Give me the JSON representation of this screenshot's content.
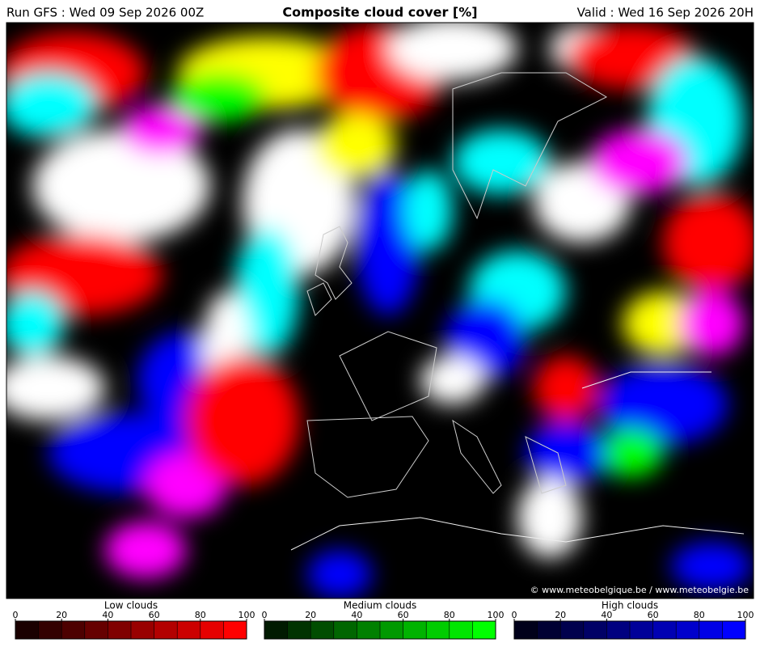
{
  "header": {
    "run": "Run GFS : Wed 09 Sep 2026 00Z",
    "title": "Composite cloud cover [%]",
    "valid": "Valid : Wed 16 Sep 2026 20H"
  },
  "map": {
    "credit": "© www.meteobelgique.be / www.meteobelgie.be"
  },
  "colorbars": [
    {
      "label": "Low clouds",
      "lim": [
        0,
        100
      ],
      "ticks": [
        0,
        20,
        40,
        60,
        80,
        100
      ],
      "colors": [
        "#1a0000",
        "#330000",
        "#4d0000",
        "#660000",
        "#800000",
        "#990000",
        "#b30000",
        "#cc0000",
        "#e60000",
        "#ff0000"
      ]
    },
    {
      "label": "Medium clouds",
      "lim": [
        0,
        100
      ],
      "ticks": [
        0,
        20,
        40,
        60,
        80,
        100
      ],
      "colors": [
        "#001a00",
        "#003300",
        "#004d00",
        "#006600",
        "#008000",
        "#009900",
        "#00b300",
        "#00cc00",
        "#00e600",
        "#00ff00"
      ]
    },
    {
      "label": "High clouds",
      "lim": [
        0,
        100
      ],
      "ticks": [
        0,
        20,
        40,
        60,
        80,
        100
      ],
      "colors": [
        "#00001a",
        "#000033",
        "#00004d",
        "#000066",
        "#000080",
        "#000099",
        "#0000b3",
        "#0000cc",
        "#0000e6",
        "#0000ff"
      ]
    }
  ]
}
